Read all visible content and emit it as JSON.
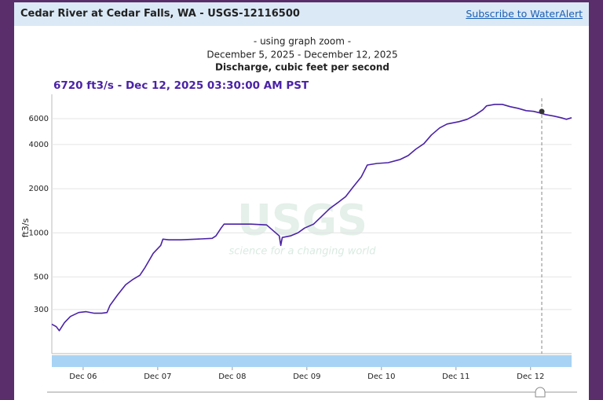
{
  "header": {
    "title": "Cedar River at Cedar Falls, WA - USGS-12116500",
    "link": "Subscribe to WaterAlert"
  },
  "chart_data": {
    "type": "line",
    "subtitle": "- using graph zoom -",
    "date_range": "December 5, 2025 - December 12, 2025",
    "title": "Discharge, cubic feet per second",
    "y_label": "ft3/s",
    "watermark": {
      "logo": "USGS",
      "tagline": "science for a changing world"
    },
    "tooltip": {
      "text": "6720 ft3/s - Dec 12, 2025 03:30:00 AM PST",
      "x": 12.15,
      "y": 6720
    },
    "log_y": true,
    "grid": true,
    "color": "#4b22a6",
    "xlim": [
      5.58,
      12.55
    ],
    "ylim": [
      150,
      8800
    ],
    "xticks": [
      {
        "value": 6,
        "label": "Dec 06"
      },
      {
        "value": 7,
        "label": "Dec 07"
      },
      {
        "value": 8,
        "label": "Dec 08"
      },
      {
        "value": 9,
        "label": "Dec 09"
      },
      {
        "value": 10,
        "label": "Dec 10"
      },
      {
        "value": 11,
        "label": "Dec 11"
      },
      {
        "value": 12,
        "label": "Dec 12"
      }
    ],
    "yticks": [
      300,
      500,
      1000,
      2000,
      4000,
      6000
    ],
    "x": [
      5.58,
      5.64,
      5.68,
      5.75,
      5.83,
      5.94,
      6.04,
      6.15,
      6.25,
      6.32,
      6.36,
      6.46,
      6.57,
      6.67,
      6.76,
      6.83,
      6.94,
      7.04,
      7.07,
      7.15,
      7.31,
      7.52,
      7.73,
      7.78,
      7.85,
      7.89,
      8.04,
      8.25,
      8.46,
      8.57,
      8.63,
      8.65,
      8.67,
      8.78,
      8.88,
      8.97,
      9.09,
      9.2,
      9.31,
      9.41,
      9.52,
      9.62,
      9.73,
      9.81,
      9.94,
      10.09,
      10.25,
      10.36,
      10.46,
      10.57,
      10.67,
      10.78,
      10.88,
      11.04,
      11.15,
      11.25,
      11.36,
      11.41,
      11.52,
      11.62,
      11.73,
      11.83,
      11.94,
      12.04,
      12.13,
      12.2,
      12.31,
      12.41,
      12.48,
      12.55
    ],
    "values": [
      238,
      229,
      215,
      244,
      269,
      286,
      290,
      283,
      283,
      286,
      320,
      376,
      442,
      482,
      513,
      580,
      725,
      820,
      906,
      895,
      895,
      906,
      917,
      952,
      1077,
      1146,
      1146,
      1146,
      1132,
      1012,
      952,
      820,
      929,
      952,
      1000,
      1077,
      1146,
      1297,
      1468,
      1600,
      1766,
      2051,
      2410,
      2898,
      2972,
      3008,
      3162,
      3365,
      3715,
      4055,
      4645,
      5190,
      5521,
      5728,
      5943,
      6324,
      6900,
      7340,
      7516,
      7516,
      7244,
      7063,
      6808,
      6730,
      6561,
      6397,
      6250,
      6095,
      5943,
      6095
    ]
  }
}
